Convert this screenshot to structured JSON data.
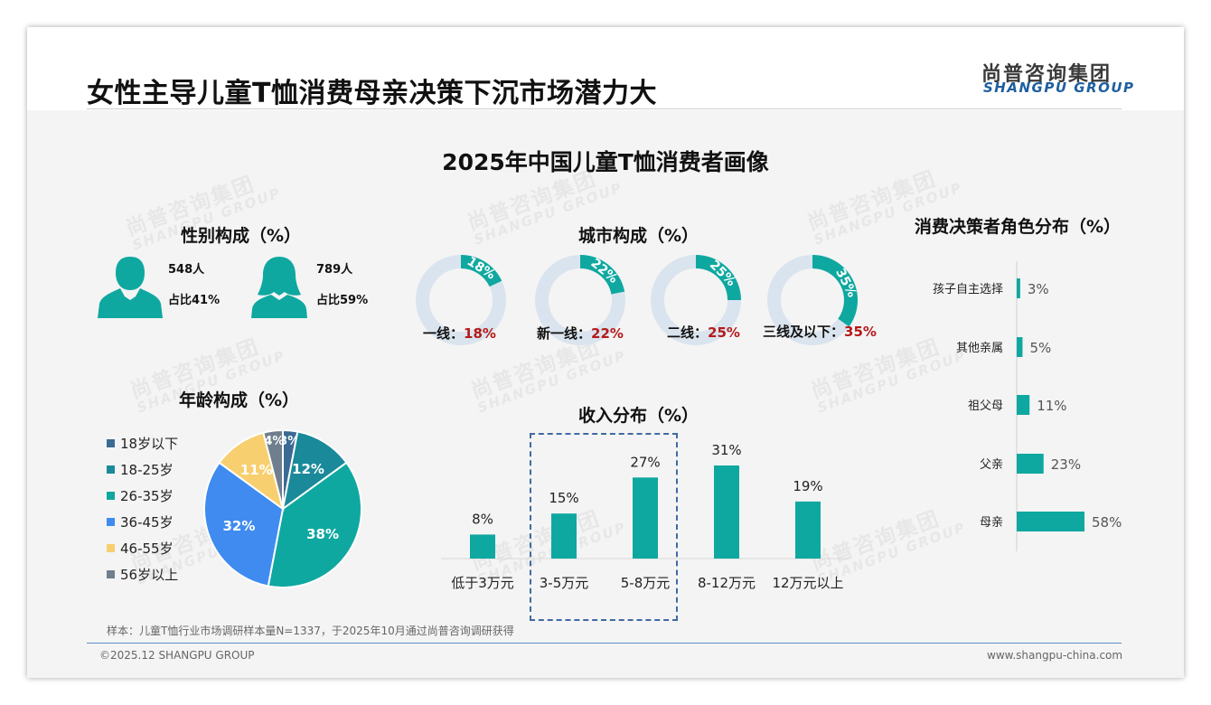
{
  "header": {
    "title": "女性主导儿童T恤消费母亲决策下沉市场潜力大",
    "logo_cn": "尚普咨询集团",
    "logo_en": "SHANGPU GROUP"
  },
  "main_title": "2025年中国儿童T恤消费者画像",
  "watermark": {
    "cn": "尚普咨询集团",
    "en": "SHANGPU GROUP"
  },
  "colors": {
    "teal": "#0fa8a0",
    "donut_bg": "#dae4ee",
    "highlight_red": "#b51a1a",
    "dash_blue": "#3f6aa3"
  },
  "gender": {
    "title": "性别构成（%）",
    "male": {
      "icon": "male-person-icon",
      "count": "548人",
      "share": "占比41%"
    },
    "female": {
      "icon": "female-person-icon",
      "count": "789人",
      "share": "占比59%"
    }
  },
  "city": {
    "title": "城市构成（%）",
    "items": [
      {
        "label": "一线：",
        "value": "18%"
      },
      {
        "label": "新一线：",
        "value": "22%"
      },
      {
        "label": "二线：",
        "value": "25%"
      },
      {
        "label": "三线及以下：",
        "value": "35%"
      }
    ]
  },
  "decision": {
    "title": "消费决策者角色分布（%）"
  },
  "age": {
    "title": "年龄构成（%）"
  },
  "income": {
    "title": "收入分布（%）"
  },
  "chart_data": [
    {
      "type": "pie",
      "title": "城市构成（%）",
      "categories": [
        "一线",
        "新一线",
        "二线",
        "三线及以下"
      ],
      "values": [
        18,
        22,
        25,
        35
      ],
      "labels": [
        "18%",
        "22%",
        "25%",
        "35%"
      ]
    },
    {
      "type": "pie",
      "title": "年龄构成（%）",
      "categories": [
        "18岁以下",
        "18-25岁",
        "26-35岁",
        "36-45岁",
        "46-55岁",
        "56岁以上"
      ],
      "values": [
        3,
        12,
        38,
        32,
        11,
        4
      ],
      "labels": [
        "3%",
        "12%",
        "38%",
        "32%",
        "11%",
        "4%"
      ],
      "colors": [
        "#3b6b94",
        "#1a8a9a",
        "#0fa8a0",
        "#3f8bf0",
        "#f8cf6e",
        "#6f7f8e"
      ],
      "legend": "left"
    },
    {
      "type": "bar",
      "title": "收入分布（%）",
      "categories": [
        "低于3万元",
        "3-5万元",
        "5-8万元",
        "8-12万元",
        "12万元以上"
      ],
      "values": [
        8,
        15,
        27,
        31,
        19
      ],
      "labels": [
        "8%",
        "15%",
        "27%",
        "31%",
        "19%"
      ],
      "ylim": [
        0,
        31
      ],
      "highlighted": [
        "3-5万元",
        "5-8万元"
      ]
    },
    {
      "type": "bar",
      "orientation": "horizontal",
      "title": "消费决策者角色分布（%）",
      "categories": [
        "孩子自主选择",
        "其他亲属",
        "祖父母",
        "父亲",
        "母亲"
      ],
      "values": [
        3,
        5,
        11,
        23,
        58
      ],
      "labels": [
        "3%",
        "5%",
        "11%",
        "23%",
        "58%"
      ],
      "xlim": [
        0,
        58
      ]
    }
  ],
  "footer": {
    "note": "样本：儿童T恤行业市场调研样本量N=1337，于2025年10月通过尚普咨询调研获得",
    "copyright": "©2025.12 SHANGPU GROUP",
    "site": "www.shangpu-china.com"
  }
}
